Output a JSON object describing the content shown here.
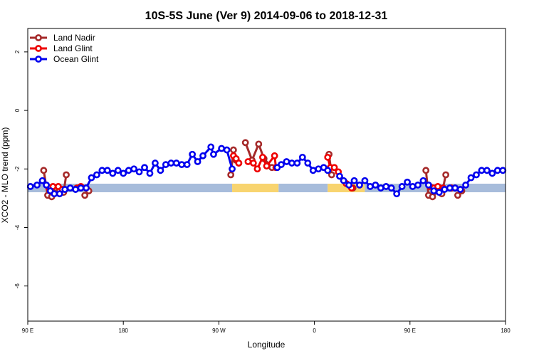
{
  "chart_data": {
    "type": "line",
    "title": "10S-5S June (Ver 9)   2014-09-06 to 2018-12-31",
    "xlabel": "Longitude",
    "ylabel": "XCO2 - MLO trend (ppm)",
    "xlim": [
      0,
      360
    ],
    "ylim": [
      -7.2,
      2.8
    ],
    "x_ticks": [
      {
        "value": 0,
        "label": "90 E"
      },
      {
        "value": 72,
        "label": "180"
      },
      {
        "value": 144,
        "label": "90 W"
      },
      {
        "value": 216,
        "label": "0"
      },
      {
        "value": 288,
        "label": "90 E"
      },
      {
        "value": 360,
        "label": "180"
      }
    ],
    "y_ticks": [
      {
        "value": 2,
        "label": "2"
      },
      {
        "value": 0,
        "label": "0"
      },
      {
        "value": -2,
        "label": "-2"
      },
      {
        "value": -4,
        "label": "-4"
      },
      {
        "value": -6,
        "label": "-6"
      }
    ],
    "legend_position": "top-left",
    "band": {
      "y": -2.65,
      "segments": [
        {
          "x0": 0,
          "x1": 154,
          "type": "ocean"
        },
        {
          "x0": 154,
          "x1": 189,
          "type": "land"
        },
        {
          "x0": 189,
          "x1": 226,
          "type": "ocean"
        },
        {
          "x0": 226,
          "x1": 254,
          "type": "land"
        },
        {
          "x0": 254,
          "x1": 360,
          "type": "ocean"
        }
      ],
      "colors": {
        "ocean": "#a7bcdb",
        "land": "#f8d46f"
      }
    },
    "series": [
      {
        "name": "Land Nadir",
        "color": "#a52a2a",
        "segments": [
          [
            [
              12,
              -2.05
            ],
            [
              15,
              -2.9
            ],
            [
              18,
              -2.95
            ],
            [
              21,
              -2.65
            ],
            [
              24,
              -2.75
            ],
            [
              27,
              -2.8
            ],
            [
              29,
              -2.2
            ]
          ],
          [
            [
              43,
              -2.9
            ],
            [
              46,
              -2.75
            ]
          ],
          [
            [
              153,
              -2.2
            ],
            [
              155,
              -1.35
            ],
            [
              157,
              -1.7
            ],
            [
              159,
              -1.8
            ]
          ],
          [
            [
              164,
              -1.1
            ],
            [
              169,
              -1.7
            ],
            [
              174,
              -1.15
            ],
            [
              178,
              -1.65
            ],
            [
              184,
              -1.95
            ]
          ],
          [
            [
              227,
              -1.5
            ],
            [
              229,
              -2.2
            ]
          ],
          [
            [
              245,
              -2.65
            ]
          ],
          [
            [
              300,
              -2.05
            ],
            [
              302,
              -2.9
            ],
            [
              305,
              -2.95
            ],
            [
              309,
              -2.75
            ],
            [
              312,
              -2.85
            ],
            [
              315,
              -2.2
            ]
          ],
          [
            [
              324,
              -2.9
            ],
            [
              327,
              -2.75
            ]
          ]
        ]
      },
      {
        "name": "Land Glint",
        "color": "#ee0000",
        "segments": [
          [
            [
              16,
              -2.65
            ],
            [
              19,
              -2.6
            ],
            [
              23,
              -2.6
            ],
            [
              26,
              -2.7
            ]
          ],
          [
            [
              37,
              -2.65
            ],
            [
              40,
              -2.6
            ],
            [
              44,
              -2.65
            ]
          ],
          [
            [
              155,
              -1.55
            ],
            [
              157,
              -1.65
            ],
            [
              159,
              -1.8
            ]
          ],
          [
            [
              166,
              -1.75
            ],
            [
              170,
              -1.8
            ],
            [
              173,
              -2.0
            ],
            [
              177,
              -1.6
            ],
            [
              180,
              -1.9
            ],
            [
              186,
              -1.55
            ],
            [
              187,
              -1.95
            ]
          ],
          [
            [
              226,
              -1.6
            ],
            [
              228,
              -1.95
            ],
            [
              231,
              -1.95
            ],
            [
              234,
              -2.1
            ]
          ],
          [
            [
              240,
              -2.5
            ],
            [
              244,
              -2.65
            ]
          ],
          [
            [
              303,
              -2.6
            ],
            [
              306,
              -2.65
            ],
            [
              309,
              -2.6
            ],
            [
              313,
              -2.65
            ]
          ],
          [
            [
              319,
              -2.65
            ],
            [
              322,
              -2.65
            ],
            [
              326,
              -2.7
            ]
          ]
        ]
      },
      {
        "name": "Ocean Glint",
        "color": "#0000ee",
        "segments": [
          [
            [
              2,
              -2.6
            ],
            [
              7,
              -2.55
            ],
            [
              11,
              -2.4
            ],
            [
              14,
              -2.55
            ],
            [
              17,
              -2.75
            ],
            [
              20,
              -2.85
            ],
            [
              24,
              -2.85
            ],
            [
              28,
              -2.7
            ],
            [
              32,
              -2.65
            ],
            [
              36,
              -2.7
            ],
            [
              40,
              -2.65
            ],
            [
              44,
              -2.65
            ],
            [
              48,
              -2.3
            ],
            [
              52,
              -2.2
            ],
            [
              56,
              -2.05
            ],
            [
              60,
              -2.05
            ],
            [
              64,
              -2.15
            ],
            [
              68,
              -2.05
            ],
            [
              72,
              -2.15
            ],
            [
              76,
              -2.05
            ],
            [
              80,
              -2.0
            ],
            [
              84,
              -2.1
            ],
            [
              88,
              -1.95
            ],
            [
              92,
              -2.15
            ],
            [
              96,
              -1.8
            ],
            [
              100,
              -2.05
            ],
            [
              104,
              -1.85
            ],
            [
              108,
              -1.8
            ],
            [
              112,
              -1.8
            ],
            [
              116,
              -1.85
            ],
            [
              120,
              -1.85
            ],
            [
              124,
              -1.5
            ],
            [
              128,
              -1.75
            ],
            [
              132,
              -1.55
            ],
            [
              138,
              -1.25
            ],
            [
              140,
              -1.5
            ],
            [
              146,
              -1.3
            ],
            [
              150,
              -1.35
            ],
            [
              154,
              -2.0
            ]
          ],
          [
            [
              188,
              -1.95
            ],
            [
              191,
              -1.85
            ],
            [
              195,
              -1.75
            ],
            [
              199,
              -1.8
            ],
            [
              203,
              -1.8
            ],
            [
              207,
              -1.6
            ],
            [
              211,
              -1.8
            ],
            [
              215,
              -2.05
            ],
            [
              219,
              -2.0
            ],
            [
              223,
              -1.95
            ],
            [
              226,
              -2.05
            ]
          ],
          [
            [
              235,
              -2.25
            ],
            [
              238,
              -2.4
            ],
            [
              242,
              -2.55
            ],
            [
              246,
              -2.4
            ],
            [
              250,
              -2.55
            ],
            [
              254,
              -2.4
            ],
            [
              258,
              -2.6
            ],
            [
              262,
              -2.55
            ],
            [
              266,
              -2.65
            ],
            [
              270,
              -2.6
            ],
            [
              274,
              -2.65
            ],
            [
              278,
              -2.85
            ],
            [
              282,
              -2.6
            ],
            [
              286,
              -2.45
            ],
            [
              290,
              -2.6
            ],
            [
              294,
              -2.55
            ],
            [
              298,
              -2.4
            ],
            [
              302,
              -2.55
            ],
            [
              306,
              -2.75
            ],
            [
              310,
              -2.8
            ],
            [
              314,
              -2.7
            ],
            [
              318,
              -2.65
            ],
            [
              322,
              -2.65
            ],
            [
              326,
              -2.7
            ],
            [
              330,
              -2.55
            ],
            [
              334,
              -2.3
            ],
            [
              338,
              -2.2
            ],
            [
              342,
              -2.05
            ],
            [
              346,
              -2.05
            ],
            [
              350,
              -2.15
            ],
            [
              354,
              -2.05
            ],
            [
              358,
              -2.05
            ]
          ]
        ]
      }
    ]
  }
}
